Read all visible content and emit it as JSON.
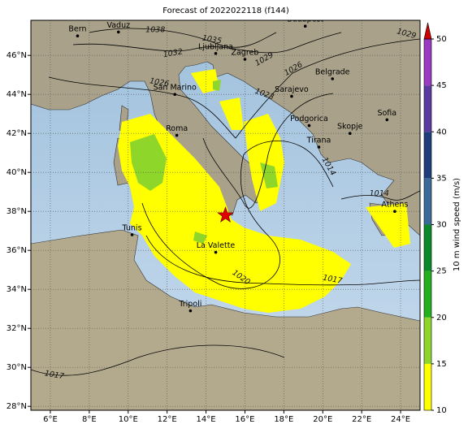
{
  "title": "Forecast of 2022022118 (f144)",
  "map": {
    "xticks": [
      {
        "value": 6,
        "label": "6°E"
      },
      {
        "value": 8,
        "label": "8°E"
      },
      {
        "value": 10,
        "label": "10°E"
      },
      {
        "value": 12,
        "label": "12°E"
      },
      {
        "value": 14,
        "label": "14°E"
      },
      {
        "value": 16,
        "label": "16°E"
      },
      {
        "value": 18,
        "label": "18°E"
      },
      {
        "value": 20,
        "label": "20°E"
      },
      {
        "value": 22,
        "label": "22°E"
      },
      {
        "value": 24,
        "label": "24°E"
      }
    ],
    "yticks": [
      {
        "value": 28,
        "label": "28°N"
      },
      {
        "value": 30,
        "label": "30°N"
      },
      {
        "value": 32,
        "label": "32°N"
      },
      {
        "value": 34,
        "label": "34°N"
      },
      {
        "value": 36,
        "label": "36°N"
      },
      {
        "value": 38,
        "label": "38°N"
      },
      {
        "value": 40,
        "label": "40°N"
      },
      {
        "value": 42,
        "label": "42°N"
      },
      {
        "value": 44,
        "label": "44°N"
      },
      {
        "value": 46,
        "label": "46°N"
      }
    ],
    "xlim": [
      5,
      25
    ],
    "ylim": [
      27.8,
      47.8
    ],
    "cities": [
      {
        "name": "Bern",
        "lon": 7.4,
        "lat": 47.0
      },
      {
        "name": "Vaduz",
        "lon": 9.5,
        "lat": 47.2
      },
      {
        "name": "Budapest",
        "lon": 19.1,
        "lat": 47.5
      },
      {
        "name": "Ljubljana",
        "lon": 14.5,
        "lat": 46.1
      },
      {
        "name": "Zagreb",
        "lon": 16.0,
        "lat": 45.8
      },
      {
        "name": "Belgrade",
        "lon": 20.5,
        "lat": 44.8
      },
      {
        "name": "San Marino",
        "lon": 12.4,
        "lat": 44.0
      },
      {
        "name": "Sarajevo",
        "lon": 18.4,
        "lat": 43.9
      },
      {
        "name": "Podgorica",
        "lon": 19.3,
        "lat": 42.4
      },
      {
        "name": "Sofia",
        "lon": 23.3,
        "lat": 42.7
      },
      {
        "name": "Skopje",
        "lon": 21.4,
        "lat": 42.0
      },
      {
        "name": "Tirana",
        "lon": 19.8,
        "lat": 41.3
      },
      {
        "name": "Roma",
        "lon": 12.5,
        "lat": 41.9
      },
      {
        "name": "Tunis",
        "lon": 10.2,
        "lat": 36.8
      },
      {
        "name": "La Valette",
        "lon": 14.5,
        "lat": 35.9
      },
      {
        "name": "Athens",
        "lon": 23.7,
        "lat": 38.0
      },
      {
        "name": "Tripoli",
        "lon": 13.2,
        "lat": 32.9
      }
    ],
    "isobar_labels": [
      {
        "text": "1038",
        "lon": 11.4,
        "lat": 47.3
      },
      {
        "text": "1035",
        "lon": 14.3,
        "lat": 46.8
      },
      {
        "text": "1032",
        "lon": 12.3,
        "lat": 46.1
      },
      {
        "text": "1029",
        "lon": 17.0,
        "lat": 45.8
      },
      {
        "text": "1029",
        "lon": 24.3,
        "lat": 47.1
      },
      {
        "text": "1026",
        "lon": 18.5,
        "lat": 45.3
      },
      {
        "text": "1026",
        "lon": 11.6,
        "lat": 44.6
      },
      {
        "text": "1023",
        "lon": 17.0,
        "lat": 44.0
      },
      {
        "text": "1020",
        "lon": 15.8,
        "lat": 34.6
      },
      {
        "text": "1017",
        "lon": 20.5,
        "lat": 34.5
      },
      {
        "text": "1017",
        "lon": 6.2,
        "lat": 29.6
      },
      {
        "text": "1014",
        "lon": 20.3,
        "lat": 40.3
      },
      {
        "text": "1014",
        "lon": 22.9,
        "lat": 38.9
      }
    ],
    "marker": {
      "lon": 15.0,
      "lat": 37.8,
      "color": "#e00000"
    }
  },
  "colorbar": {
    "label": "10 m wind speed (m/s)",
    "levels": [
      10,
      15,
      20,
      25,
      30,
      35,
      40,
      45,
      50
    ],
    "colors": [
      "#ffff00",
      "#8fd62a",
      "#22b01e",
      "#0a8a2a",
      "#3a6b9a",
      "#1f3d7a",
      "#5a3aa0",
      "#9a3ac0"
    ],
    "extend_color": "#d00000"
  }
}
